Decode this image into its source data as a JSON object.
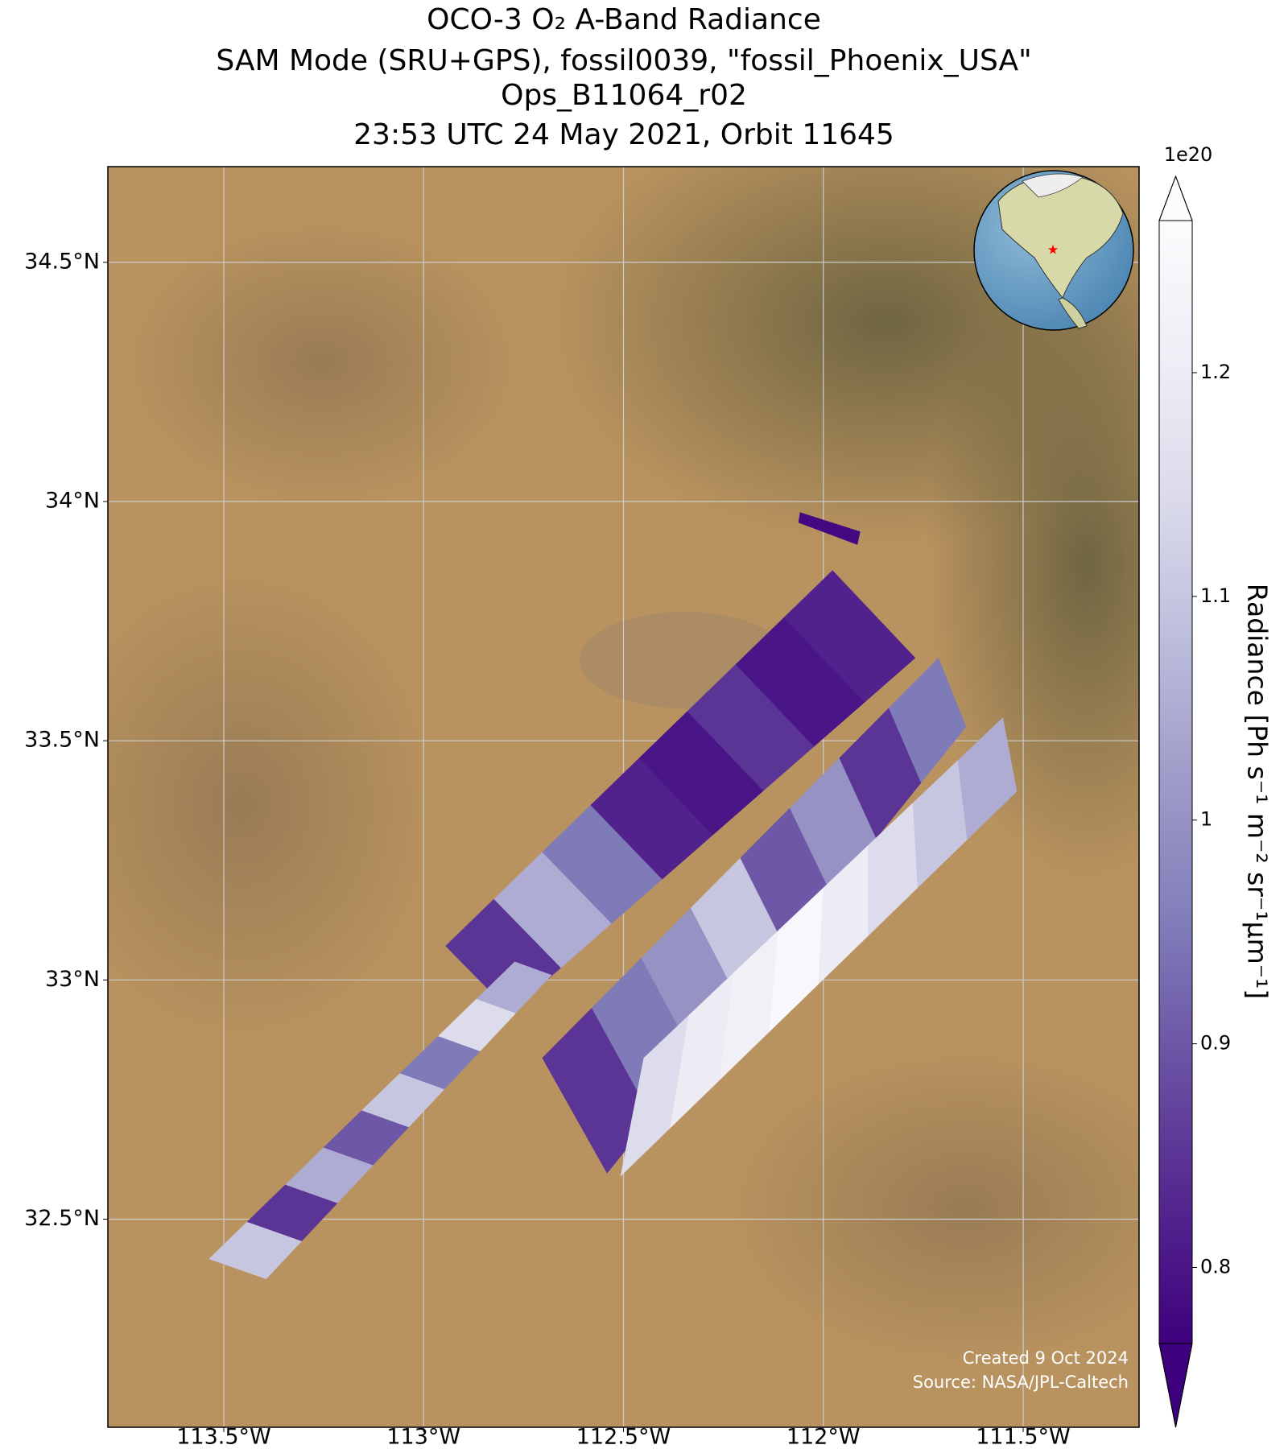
{
  "title_lines": [
    "OCO-3 O₂ A-Band Radiance",
    "SAM Mode (SRU+GPS), fossil0039, \"fossil_Phoenix_USA\"",
    "Ops_B11064_r02",
    "23:53 UTC 24 May 2021, Orbit 11645"
  ],
  "map": {
    "xlim": [
      -113.79,
      -111.21
    ],
    "ylim": [
      32.065,
      34.7
    ],
    "xticks": [
      {
        "value": -113.5,
        "label": "113.5°W"
      },
      {
        "value": -113,
        "label": "113°W"
      },
      {
        "value": -112.5,
        "label": "112.5°W"
      },
      {
        "value": -112,
        "label": "112°W"
      },
      {
        "value": -111.5,
        "label": "111.5°W"
      }
    ],
    "yticks": [
      {
        "value": 32.5,
        "label": "32.5°N"
      },
      {
        "value": 33,
        "label": "33°N"
      },
      {
        "value": 33.5,
        "label": "33.5°N"
      },
      {
        "value": 34,
        "label": "34°N"
      },
      {
        "value": 34.5,
        "label": "34.5°N"
      }
    ],
    "grid": true,
    "swaths": [
      {
        "corners": [
          [
            -112.945,
            33.071
          ],
          [
            -111.977,
            33.856
          ],
          [
            -111.77,
            33.673
          ],
          [
            -112.783,
            32.933
          ]
        ],
        "values": [
          0.85,
          1.05,
          0.95,
          0.82,
          0.8,
          0.85,
          0.8,
          0.82
        ]
      },
      {
        "corners": [
          [
            -113.537,
            32.417
          ],
          [
            -112.772,
            33.038
          ],
          [
            -112.68,
            33.01
          ],
          [
            -113.394,
            32.375
          ]
        ],
        "values": [
          1.1,
          0.85,
          1.05,
          0.9,
          1.1,
          0.95,
          1.15,
          1.05
        ]
      },
      {
        "corners": [
          [
            -112.703,
            32.837
          ],
          [
            -111.712,
            33.673
          ],
          [
            -111.643,
            33.529
          ],
          [
            -112.541,
            32.596
          ]
        ],
        "values": [
          0.85,
          0.95,
          1.0,
          1.1,
          0.9,
          1.0,
          0.85,
          0.95
        ]
      },
      {
        "corners": [
          [
            -112.449,
            32.837
          ],
          [
            -111.551,
            33.548
          ],
          [
            -111.516,
            33.394
          ],
          [
            -112.507,
            32.59
          ]
        ],
        "values": [
          1.15,
          1.2,
          1.22,
          1.25,
          1.2,
          1.15,
          1.1,
          1.05
        ]
      },
      {
        "corners": [
          [
            -112.058,
            33.977
          ],
          [
            -111.908,
            33.937
          ],
          [
            -111.915,
            33.91
          ],
          [
            -112.062,
            33.956
          ]
        ],
        "values": [
          0.78
        ]
      }
    ],
    "target": {
      "lon": -112.08,
      "lat": 33.45,
      "color": "#ff0000"
    }
  },
  "colorbar": {
    "clim": [
      0.766,
      1.268
    ],
    "ticks": [
      0.8,
      0.9,
      1.0,
      1.1,
      1.2
    ],
    "offset_label": "1e20",
    "label": "Radiance [Ph s⁻¹ m⁻² sr⁻¹μm⁻¹]",
    "colormap": [
      "#3f007d",
      "#54278f",
      "#6a51a3",
      "#807dba",
      "#9e9ac8",
      "#bcbddc",
      "#dadaeb",
      "#efedf5",
      "#fcfbfd"
    ]
  },
  "credits": [
    "Created 9 Oct 2024",
    "Source: NASA/JPL-Caltech"
  ]
}
